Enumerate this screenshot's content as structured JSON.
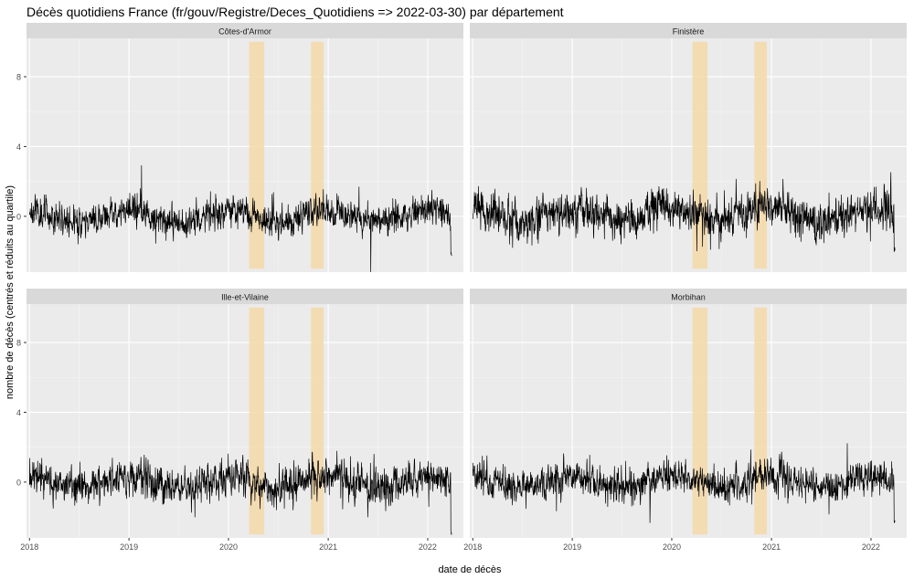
{
  "chart_data": {
    "type": "line",
    "title": "Décès quotidiens France (fr/gouv/Registre/Deces_Quotidiens => 2022-03-30) par département",
    "xlabel": "date de décès",
    "ylabel": "nombre de décès (centrés et réduits au quartile)",
    "x_ticks": [
      "2018",
      "2019",
      "2020",
      "2021",
      "2022"
    ],
    "y_ticks": [
      "0",
      "4",
      "8"
    ],
    "xlim": [
      "2017-12-21",
      "2022-05-12"
    ],
    "ylim": [
      -3.2,
      10.2
    ],
    "grid": true,
    "highlight_periods": [
      {
        "start": "2020-03-17",
        "end": "2020-05-11",
        "color": "#f5d9a8"
      },
      {
        "start": "2020-10-30",
        "end": "2020-12-15",
        "color": "#f5d9a8"
      }
    ],
    "highlight_ymin": -3.0,
    "highlight_ymax": 10.0,
    "series_color": "#000000",
    "panels": [
      {
        "name": "Côtes-d'Armor",
        "base": 0.0,
        "noise": 0.42,
        "final": -2.2,
        "seed": 11
      },
      {
        "name": "Finistère",
        "base": 0.1,
        "noise": 0.55,
        "final": -1.9,
        "seed": 23
      },
      {
        "name": "Ille-et-Vilaine",
        "base": 0.0,
        "noise": 0.48,
        "final": -2.9,
        "seed": 37
      },
      {
        "name": "Morbihan",
        "base": 0.0,
        "noise": 0.45,
        "final": -2.2,
        "seed": 41
      }
    ]
  }
}
